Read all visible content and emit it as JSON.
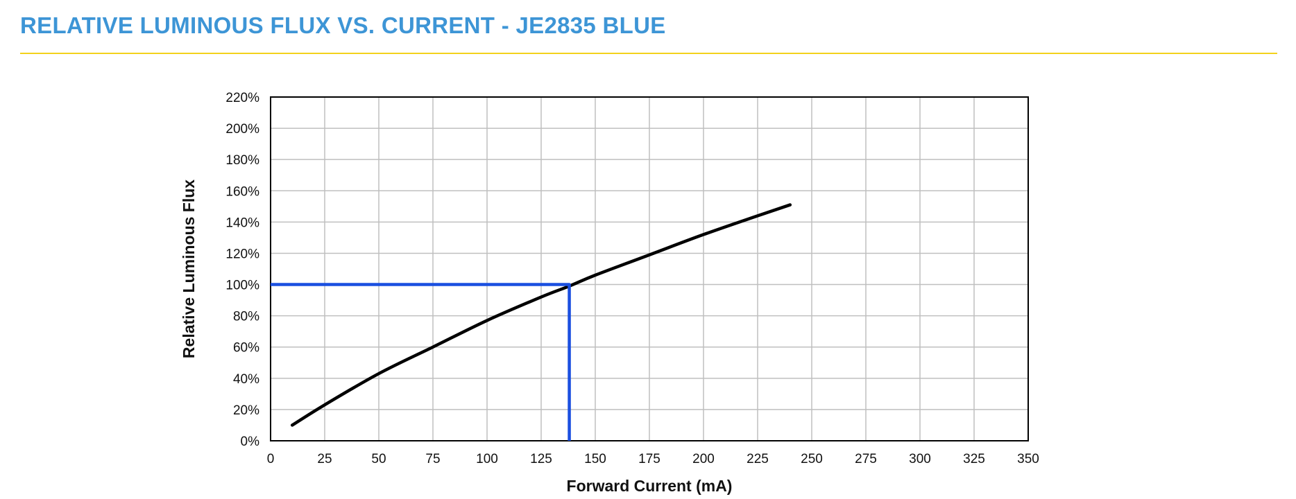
{
  "page": {
    "title": "RELATIVE LUMINOUS FLUX VS. CURRENT - JE2835 BLUE"
  },
  "colors": {
    "title": "#3d95d6",
    "rule": "#f2d21b",
    "grid": "#bfbfbf",
    "curve": "#000000",
    "marker": "#1a4fe0"
  },
  "chart_data": {
    "type": "line",
    "xlabel": "Forward Current (mA)",
    "ylabel": "Relative Luminous Flux",
    "xlim": [
      0,
      350
    ],
    "ylim": [
      0,
      220
    ],
    "x_ticks": [
      0,
      25,
      50,
      75,
      100,
      125,
      150,
      175,
      200,
      225,
      250,
      275,
      300,
      325,
      350
    ],
    "y_ticks": [
      0,
      20,
      40,
      60,
      80,
      100,
      120,
      140,
      160,
      180,
      200,
      220
    ],
    "y_tick_labels": [
      "0%",
      "20%",
      "40%",
      "60%",
      "80%",
      "100%",
      "120%",
      "140%",
      "160%",
      "180%",
      "200%",
      "220%"
    ],
    "grid": true,
    "series": [
      {
        "x": [
          10,
          25,
          50,
          75,
          100,
          125,
          138,
          150,
          175,
          200,
          225,
          240
        ],
        "y": [
          10,
          23,
          43,
          60,
          77,
          92,
          99,
          106,
          119,
          132,
          144,
          151
        ]
      }
    ],
    "annotations": [
      {
        "type": "reference-lines",
        "x": 138,
        "y": 100
      }
    ]
  }
}
